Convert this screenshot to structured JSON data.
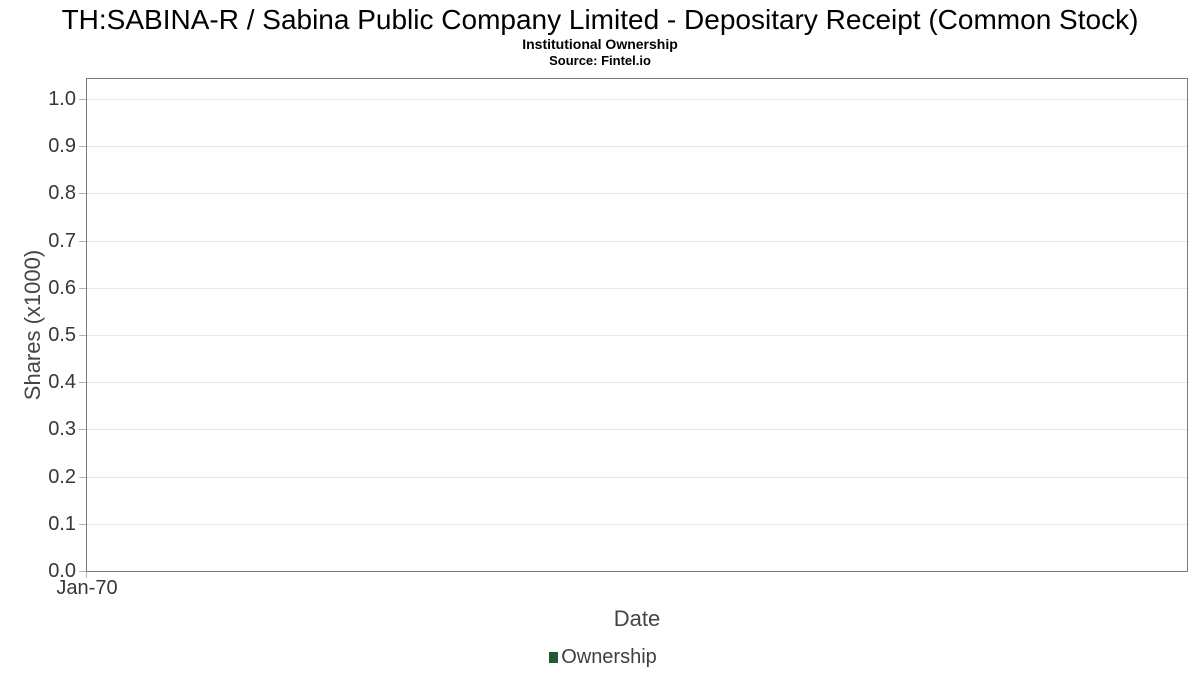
{
  "header": {
    "title": "TH:SABINA-R / Sabina Public Company Limited - Depositary Receipt (Common Stock)",
    "subtitle": "Institutional Ownership",
    "source": "Source: Fintel.io"
  },
  "chart_data": {
    "type": "line",
    "title": "TH:SABINA-R / Sabina Public Company Limited - Depositary Receipt (Common Stock)",
    "subtitle": "Institutional Ownership",
    "source": "Source: Fintel.io",
    "xlabel": "Date",
    "ylabel": "Shares (x1000)",
    "ylim": [
      0.0,
      1.0
    ],
    "ytick_step": 0.1,
    "y_ticks": [
      {
        "label": "0.0",
        "value": 0.0
      },
      {
        "label": "0.1",
        "value": 0.1
      },
      {
        "label": "0.2",
        "value": 0.2
      },
      {
        "label": "0.3",
        "value": 0.3
      },
      {
        "label": "0.4",
        "value": 0.4
      },
      {
        "label": "0.5",
        "value": 0.5
      },
      {
        "label": "0.6",
        "value": 0.6
      },
      {
        "label": "0.7",
        "value": 0.7
      },
      {
        "label": "0.8",
        "value": 0.8
      },
      {
        "label": "0.9",
        "value": 0.9
      },
      {
        "label": "1.0",
        "value": 1.0
      }
    ],
    "x_ticks": [
      "Jan-70"
    ],
    "grid": "horizontal",
    "legend_position": "bottom",
    "series": [
      {
        "name": "Ownership",
        "color": "#1e5c33",
        "x": [],
        "values": []
      }
    ]
  },
  "legend": {
    "items": [
      {
        "label": "Ownership",
        "color": "#1e5c33"
      }
    ]
  },
  "colors": {
    "title": "#000000",
    "plot_border": "#7c7c7c",
    "grid": "#e7e7e7",
    "tick_mark": "#b3b3b3",
    "tick_label": "#373737",
    "axis_title": "#454545",
    "ownership": "#1e5c33"
  }
}
